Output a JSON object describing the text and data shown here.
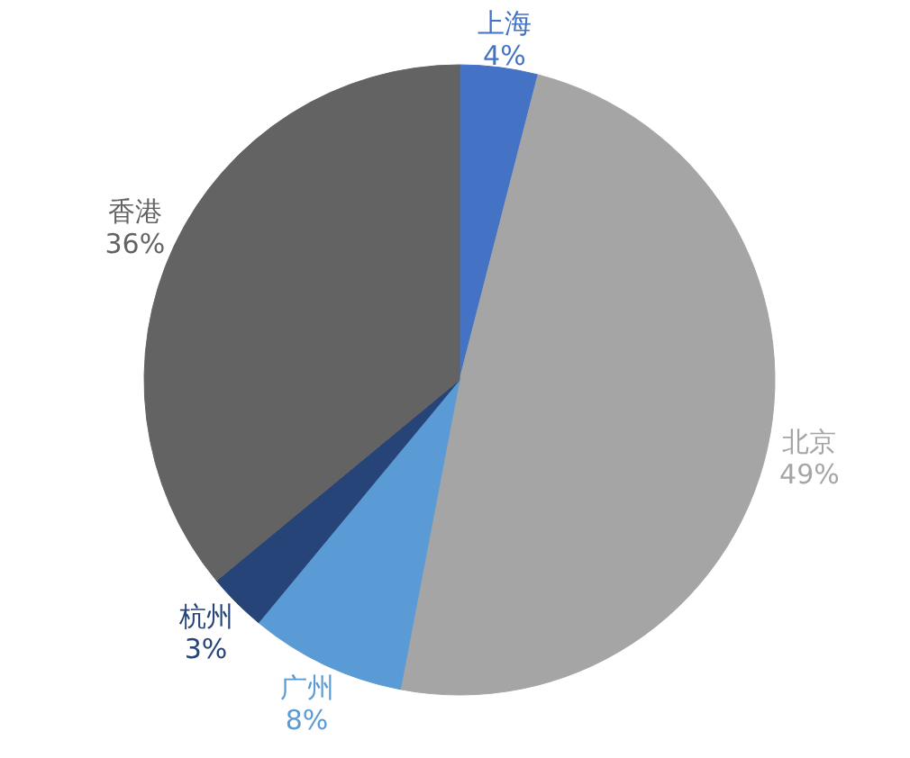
{
  "chart_data": {
    "type": "pie",
    "categories": [
      "上海",
      "北京",
      "广州",
      "杭州",
      "香港"
    ],
    "values": [
      4,
      49,
      8,
      3,
      36
    ],
    "colors": [
      "#4472c4",
      "#a5a5a5",
      "#5b9bd5",
      "#264478",
      "#636363"
    ],
    "value_labels": [
      "4%",
      "49%",
      "8%",
      "3%",
      "36%"
    ]
  }
}
